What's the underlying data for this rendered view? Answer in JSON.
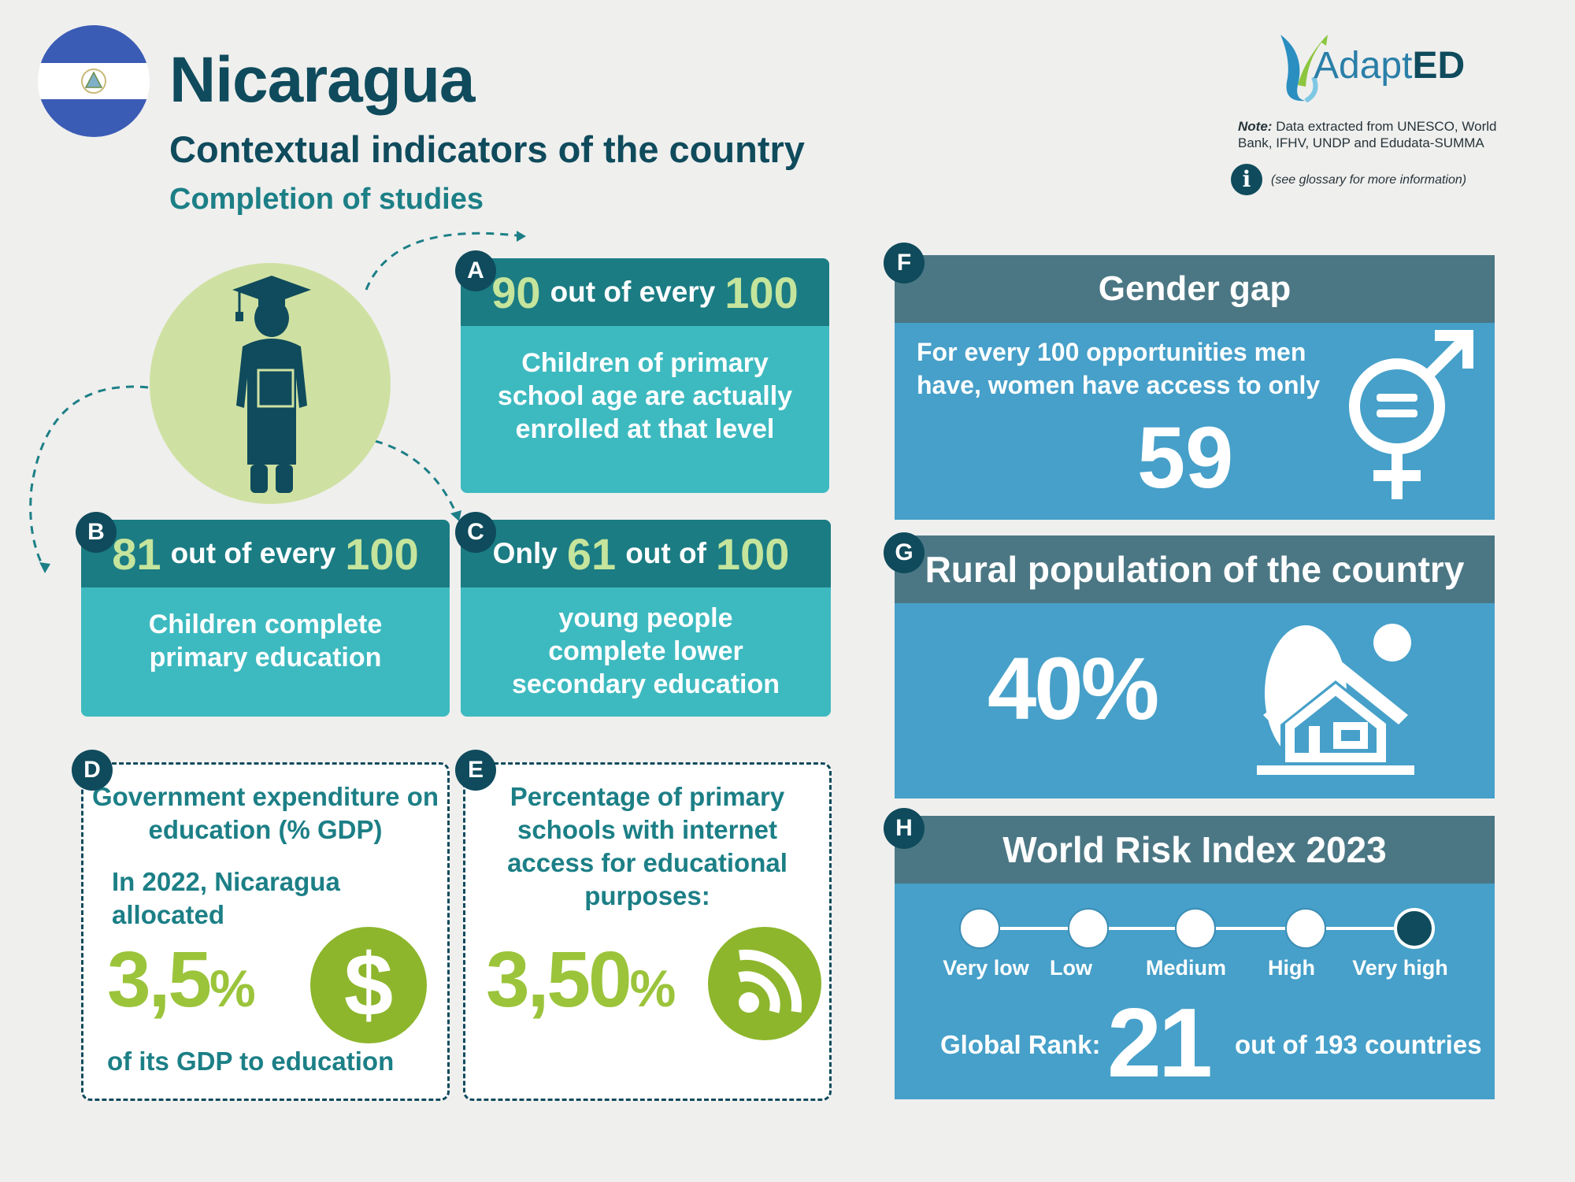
{
  "header": {
    "country": "Nicaragua",
    "subtitle": "Contextual indicators of the country",
    "section": "Completion of studies"
  },
  "flag_colors": {
    "blue": "#3b5cb5",
    "white": "#ffffff"
  },
  "logo": {
    "text_regular": "Adapt",
    "text_bold": "ED"
  },
  "note": {
    "label": "Note:",
    "text": "Data extracted from UNESCO, World Bank, IFHV, UNDP and Edudata-SUMMA",
    "info_icon": "i",
    "info_text": "(see glossary for more information)"
  },
  "cards": {
    "a": {
      "letter": "A",
      "value": "90",
      "mid": "out of every",
      "total": "100",
      "text": "Children of primary school age are actually enrolled at that level"
    },
    "b": {
      "letter": "B",
      "value": "81",
      "mid": "out of every",
      "total": "100",
      "text": "Children complete primary education"
    },
    "c": {
      "letter": "C",
      "prefix": "Only",
      "value": "61",
      "mid": "out of",
      "total": "100",
      "text": "young people complete lower secondary education"
    }
  },
  "expenditure": {
    "letter": "D",
    "title": "Government expenditure on education (% GDP)",
    "intro": "In 2022, Nicaragua allocated",
    "value": "3,5",
    "unit": "%",
    "outro": "of its GDP to education",
    "icon": "dollar-icon"
  },
  "internet": {
    "letter": "E",
    "title": "Percentage of primary schools with internet access for educational purposes:",
    "value": "3,50",
    "unit": "%",
    "icon": "wifi-icon"
  },
  "gender_gap": {
    "letter": "F",
    "title": "Gender gap",
    "text": "For every 100 opportunities men have, women have access to only",
    "value": "59",
    "icon": "gender-equality-icon"
  },
  "rural": {
    "letter": "G",
    "title": "Rural population of the country",
    "value": "40%",
    "icon": "rural-house-icon"
  },
  "risk": {
    "letter": "H",
    "title": "World Risk Index 2023",
    "levels": [
      "Very low",
      "Low",
      "Medium",
      "High",
      "Very high"
    ],
    "active_level": "Very high",
    "rank_label": "Global Rank:",
    "rank": "21",
    "rank_suffix": "out of 193 countries"
  }
}
